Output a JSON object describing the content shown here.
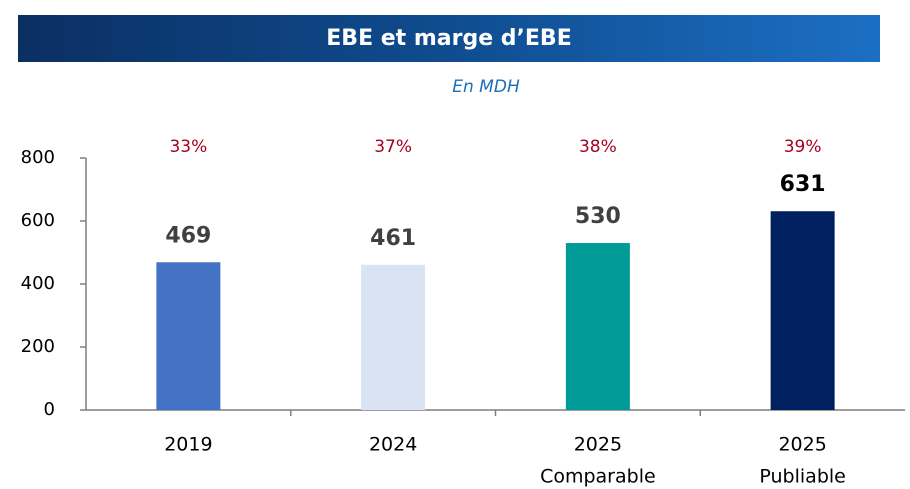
{
  "chart_data": {
    "type": "bar",
    "title": "EBE et marge d’EBE",
    "subtitle": "En MDH",
    "categories": [
      [
        "2019"
      ],
      [
        "2024"
      ],
      [
        "2025",
        "Comparable"
      ],
      [
        "2025",
        "Publiable"
      ]
    ],
    "values": [
      469,
      461,
      530,
      631
    ],
    "colors": [
      "#4472c4",
      "#dae3f3",
      "#009b96",
      "#002060"
    ],
    "value_label_colors": [
      "#404040",
      "#404040",
      "#404040",
      "#000000"
    ],
    "margins": [
      33,
      37,
      38,
      39
    ],
    "margin_labels": [
      "33%",
      "37%",
      "38%",
      "39%"
    ],
    "ylim": [
      0,
      800
    ],
    "yticks": [
      0,
      200,
      400,
      600,
      800
    ],
    "grid": false
  }
}
